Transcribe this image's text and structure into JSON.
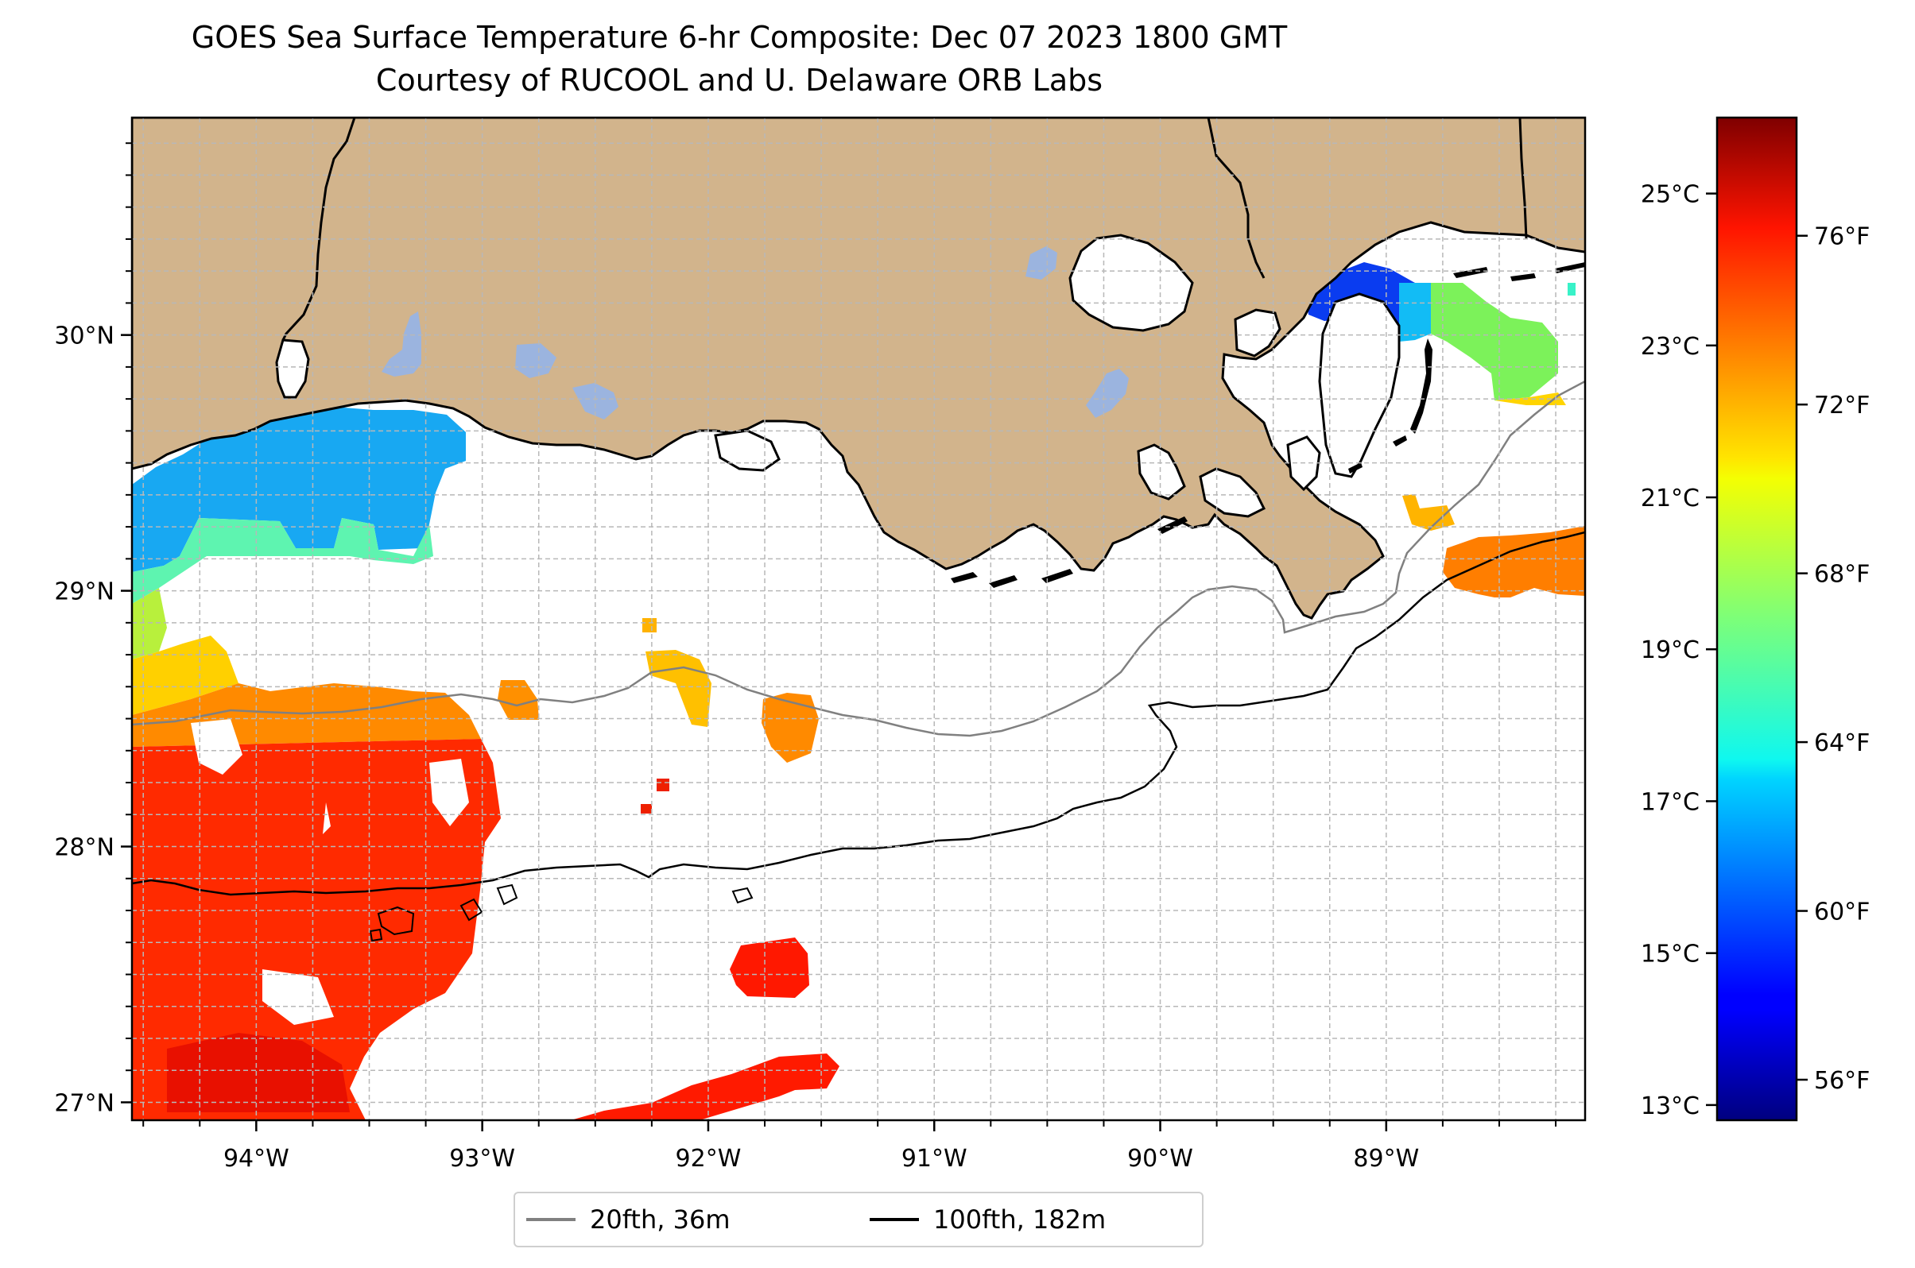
{
  "title": "GOES Sea Surface Temperature 6-hr Composite: Dec 07 2023 1800 GMT",
  "subtitle": "Courtesy of RUCOOL and U. Delaware ORB Labs",
  "map": {
    "extent": {
      "lon_min": -94.55,
      "lon_max": -88.12,
      "lat_min": 26.93,
      "lat_max": 30.85
    },
    "lon_ticks": [
      {
        "value": -94,
        "label": "94°W"
      },
      {
        "value": -93,
        "label": "93°W"
      },
      {
        "value": -92,
        "label": "92°W"
      },
      {
        "value": -91,
        "label": "91°W"
      },
      {
        "value": -90,
        "label": "90°W"
      },
      {
        "value": -89,
        "label": "89°W"
      }
    ],
    "lat_ticks": [
      {
        "value": 30,
        "label": "30°N"
      },
      {
        "value": 29,
        "label": "29°N"
      },
      {
        "value": 28,
        "label": "28°N"
      },
      {
        "value": 27,
        "label": "27°N"
      }
    ],
    "grid": true,
    "land_color": "#d2b48c",
    "lake_color": "#9bb4df",
    "ocean_color": "#ffffff"
  },
  "colorbar": {
    "colormap": "jet",
    "range_celsius": [
      12.8,
      26.0
    ],
    "celsius_ticks": [
      {
        "value": 13,
        "label": "13°C"
      },
      {
        "value": 15,
        "label": "15°C"
      },
      {
        "value": 17,
        "label": "17°C"
      },
      {
        "value": 19,
        "label": "19°C"
      },
      {
        "value": 21,
        "label": "21°C"
      },
      {
        "value": 23,
        "label": "23°C"
      },
      {
        "value": 25,
        "label": "25°C"
      }
    ],
    "fahrenheit_ticks": [
      {
        "value": 56,
        "label": "56°F"
      },
      {
        "value": 60,
        "label": "60°F"
      },
      {
        "value": 64,
        "label": "64°F"
      },
      {
        "value": 68,
        "label": "68°F"
      },
      {
        "value": 72,
        "label": "72°F"
      },
      {
        "value": 76,
        "label": "76°F"
      }
    ]
  },
  "legend": {
    "placement": "below-map",
    "items": [
      {
        "label": "20fth, 36m",
        "color": "#808080"
      },
      {
        "label": "100fth, 182m",
        "color": "#000000"
      }
    ]
  }
}
